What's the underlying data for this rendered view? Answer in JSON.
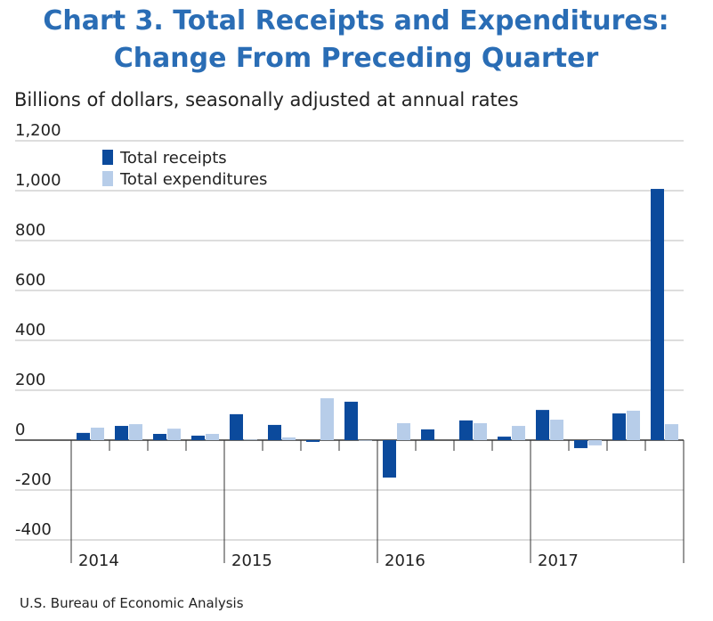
{
  "chart_data": {
    "type": "bar",
    "title": [
      "Chart 3. Total Receipts and Expenditures:",
      "Change From Preceding Quarter"
    ],
    "subtitle": "Billions of dollars, seasonally adjusted at annual rates",
    "source": "U.S. Bureau of Economic Analysis",
    "categories": [
      "2014",
      null,
      null,
      null,
      "2015",
      null,
      null,
      null,
      "2016",
      null,
      null,
      null,
      "2017",
      null,
      null,
      null
    ],
    "series": [
      {
        "name": "Total receipts",
        "color": "#0b4a9c",
        "values": [
          29,
          57,
          25,
          18,
          104,
          61,
          -7,
          154,
          -150,
          43,
          79,
          14,
          121,
          -32,
          107,
          1007
        ]
      },
      {
        "name": "Total expenditures",
        "color": "#b7cde9",
        "values": [
          50,
          64,
          46,
          25,
          2,
          11,
          168,
          -2,
          68,
          0,
          68,
          57,
          82,
          -21,
          118,
          64
        ]
      }
    ],
    "ylim": [
      -400,
      1200
    ],
    "yticks": [
      -400,
      -200,
      0,
      200,
      400,
      600,
      800,
      {
        "value": 1000,
        "label": "1,000"
      },
      {
        "value": 1200,
        "label": "1,200"
      }
    ],
    "grid": true
  }
}
